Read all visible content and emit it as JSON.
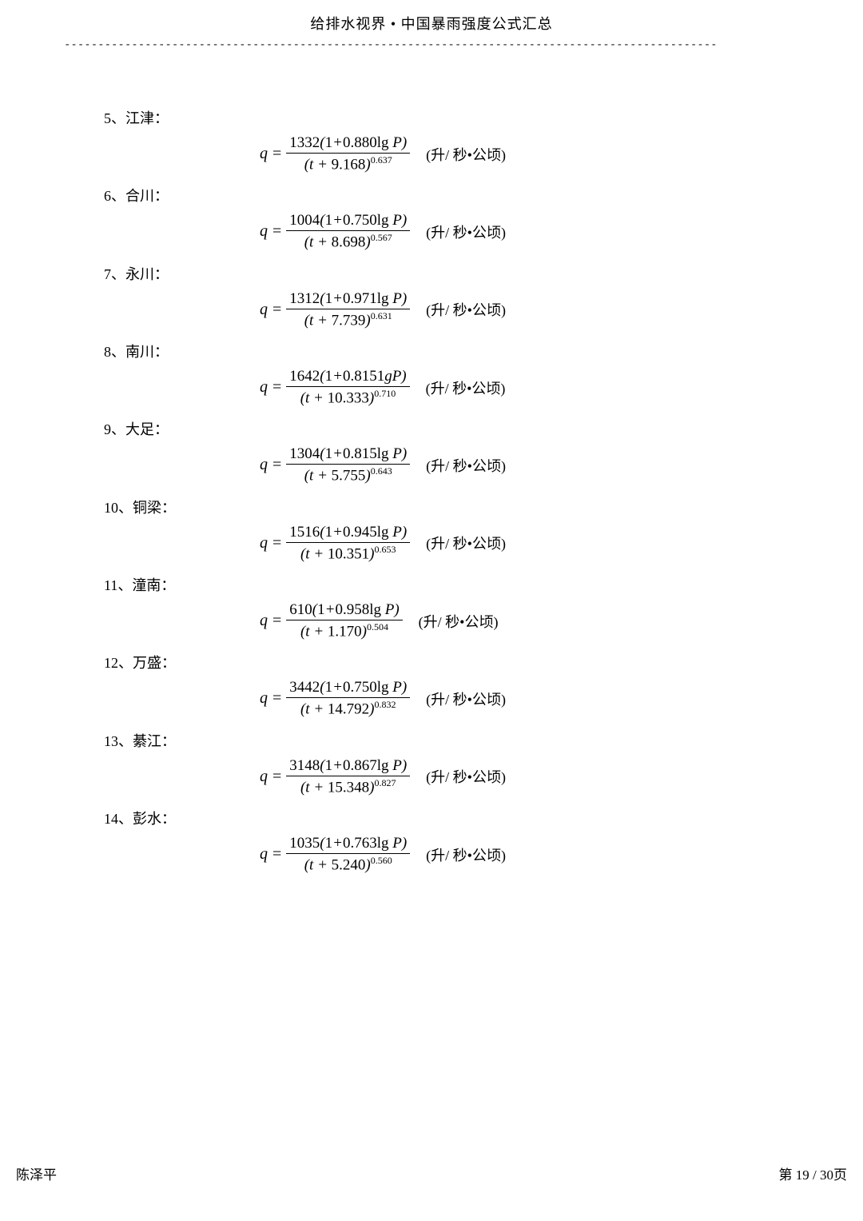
{
  "header": {
    "title": "给排水视界  •  中国暴雨强度公式汇总"
  },
  "unit_text": "(升/ 秒•公顷)",
  "entries": [
    {
      "num": "5",
      "name": "江津",
      "A": "1332",
      "C": "0.880",
      "op": "lg",
      "b": "9.168",
      "n": "0.637"
    },
    {
      "num": "6",
      "name": "合川",
      "A": "1004",
      "C": "0.750",
      "op": "lg",
      "b": "8.698",
      "n": "0.567"
    },
    {
      "num": "7",
      "name": "永川",
      "A": "1312",
      "C": "0.971",
      "op": "lg",
      "b": "7.739",
      "n": "0.631"
    },
    {
      "num": "8",
      "name": "南川",
      "A": "1642",
      "C": "0.8151",
      "op": "g",
      "b": "10.333",
      "n": "0.710"
    },
    {
      "num": "9",
      "name": "大足",
      "A": "1304",
      "C": "0.815",
      "op": "lg",
      "b": "5.755",
      "n": "0.643"
    },
    {
      "num": "10",
      "name": "铜梁",
      "A": "1516",
      "C": "0.945",
      "op": "lg",
      "b": "10.351",
      "n": "0.653"
    },
    {
      "num": "11",
      "name": "潼南",
      "A": "610",
      "C": "0.958",
      "op": "lg",
      "b": "1.170",
      "n": "0.504"
    },
    {
      "num": "12",
      "name": "万盛",
      "A": "3442",
      "C": "0.750",
      "op": "lg",
      "b": "14.792",
      "n": "0.832"
    },
    {
      "num": "13",
      "name": "綦江",
      "A": "3148",
      "C": "0.867",
      "op": "lg",
      "b": "15.348",
      "n": "0.827"
    },
    {
      "num": "14",
      "name": "彭水",
      "A": "1035",
      "C": "0.763",
      "op": "lg",
      "b": "5.240",
      "n": "0.560"
    }
  ],
  "footer": {
    "author": "陈泽平",
    "page_label": "第 19 / 30页"
  }
}
